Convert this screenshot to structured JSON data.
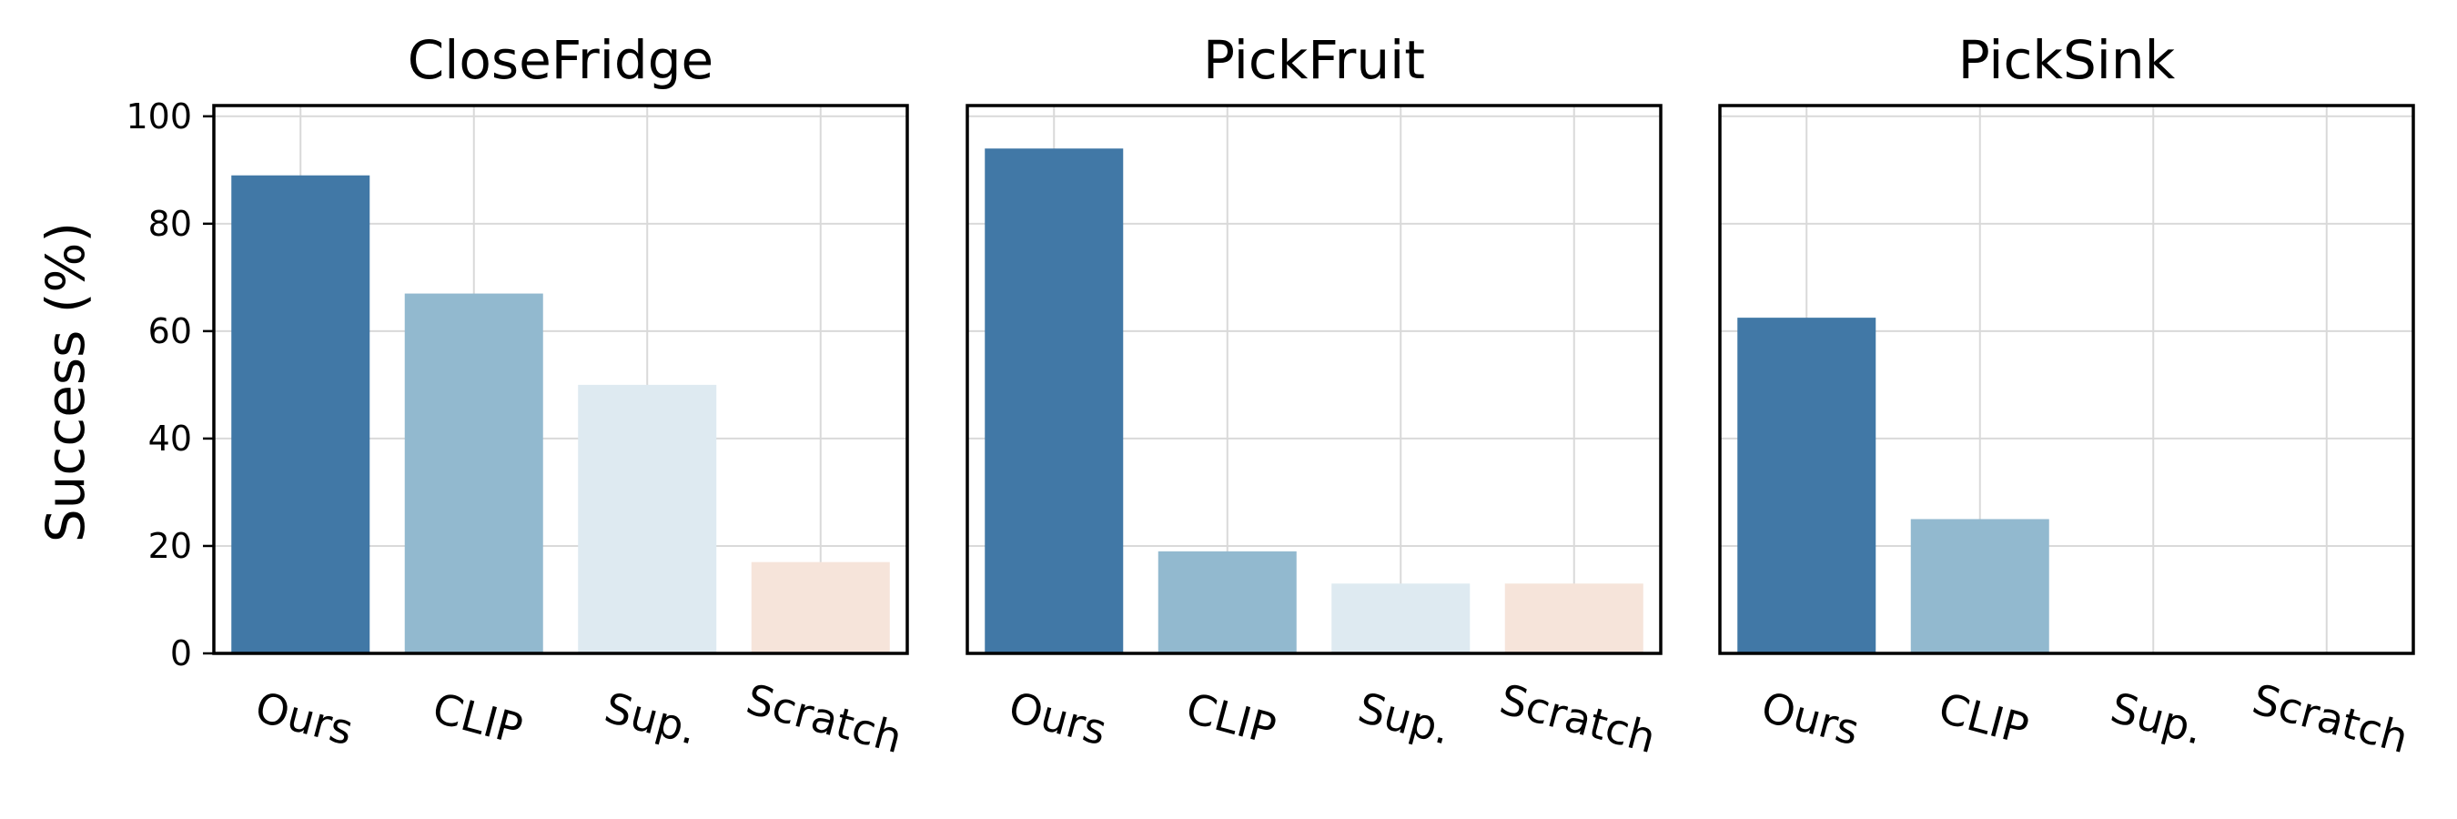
{
  "chart_data": {
    "type": "bar",
    "ylabel": "Success (%)",
    "ylim": [
      0,
      100
    ],
    "yticks": [
      0,
      20,
      40,
      60,
      80,
      100
    ],
    "grid": true,
    "categories": [
      "Ours",
      "CLIP",
      "Sup.",
      "Scratch"
    ],
    "category_colors": [
      "#4178a6",
      "#92b9cf",
      "#deeaf1",
      "#f6e4da"
    ],
    "panels": [
      {
        "title": "CloseFridge",
        "values": [
          89,
          67,
          50,
          17
        ]
      },
      {
        "title": "PickFruit",
        "values": [
          94,
          19,
          13,
          13
        ]
      },
      {
        "title": "PickSink",
        "values": [
          62.5,
          25,
          0,
          0
        ]
      }
    ]
  }
}
